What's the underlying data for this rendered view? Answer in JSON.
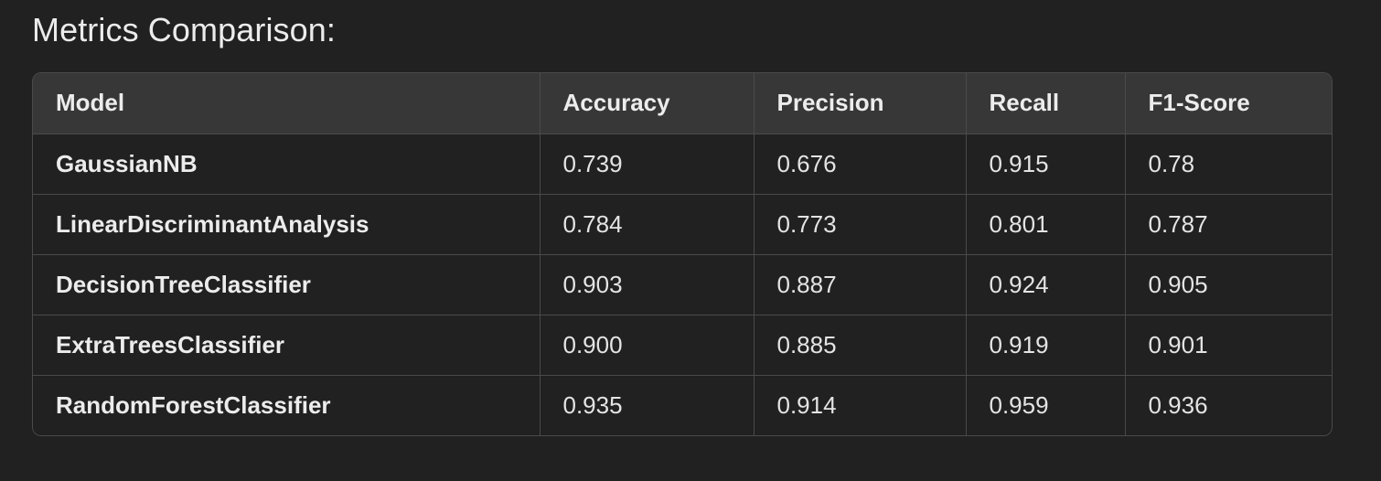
{
  "heading": "Metrics Comparison:",
  "table": {
    "columns": [
      "Model",
      "Accuracy",
      "Precision",
      "Recall",
      "F1-Score"
    ],
    "rows": [
      [
        "GaussianNB",
        "0.739",
        "0.676",
        "0.915",
        "0.78"
      ],
      [
        "LinearDiscriminantAnalysis",
        "0.784",
        "0.773",
        "0.801",
        "0.787"
      ],
      [
        "DecisionTreeClassifier",
        "0.903",
        "0.887",
        "0.924",
        "0.905"
      ],
      [
        "ExtraTreesClassifier",
        "0.900",
        "0.885",
        "0.919",
        "0.901"
      ],
      [
        "RandomForestClassifier",
        "0.935",
        "0.914",
        "0.959",
        "0.936"
      ]
    ]
  },
  "colors": {
    "background": "#212121",
    "header_background": "#373737",
    "border": "#4a4a4a",
    "text": "#ececec"
  }
}
